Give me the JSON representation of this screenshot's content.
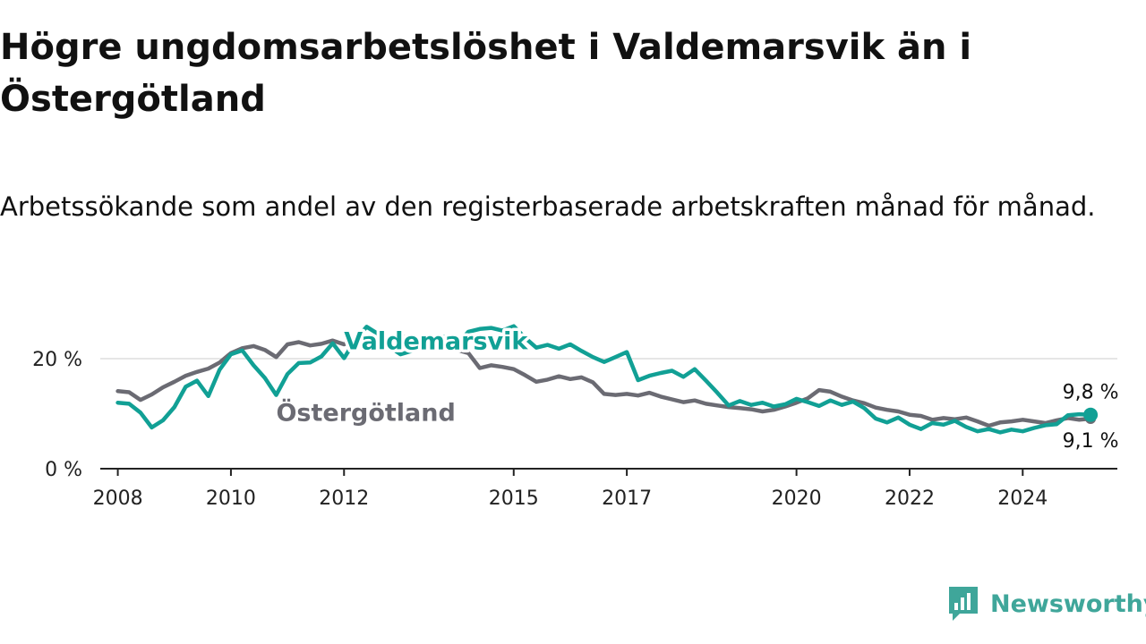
{
  "header": {
    "title": "Högre ungdomsarbetslöshet i Valdemarsvik än i Östergötland",
    "subtitle": "Arbetssökande som andel av den registerbaserade arbetskraften månad för månad."
  },
  "brand": {
    "name": "Newsworthy",
    "icon": "newsworthy-logo-icon",
    "color": "#3fa69a"
  },
  "chart_data": {
    "type": "line",
    "title": "Högre ungdomsarbetslöshet i Valdemarsvik än i Östergötland",
    "subtitle": "Arbetssökande som andel av den registerbaserade arbetskraften månad för månad.",
    "xlabel": "",
    "ylabel": "",
    "x_ticks": [
      "2008",
      "2010",
      "2012",
      "2015",
      "2017",
      "2020",
      "2022",
      "2024"
    ],
    "y_ticks": [
      {
        "value": 0,
        "label": "0 %"
      },
      {
        "value": 20,
        "label": "20 %"
      }
    ],
    "xlim": [
      2007.5,
      2025.8
    ],
    "ylim": [
      0,
      30
    ],
    "grid": true,
    "legend": "direct-labels",
    "series": [
      {
        "name": "Östergötland",
        "color": "#6b6b73",
        "label_at": [
          2010.8,
          8.7
        ],
        "end_label": "9,1 %",
        "points": [
          [
            2008.0,
            14.1
          ],
          [
            2008.2,
            13.9
          ],
          [
            2008.4,
            12.5
          ],
          [
            2008.6,
            13.5
          ],
          [
            2008.8,
            14.8
          ],
          [
            2009.0,
            15.8
          ],
          [
            2009.2,
            16.9
          ],
          [
            2009.4,
            17.6
          ],
          [
            2009.6,
            18.2
          ],
          [
            2009.8,
            19.3
          ],
          [
            2010.0,
            21.0
          ],
          [
            2010.2,
            21.9
          ],
          [
            2010.4,
            22.3
          ],
          [
            2010.6,
            21.6
          ],
          [
            2010.8,
            20.3
          ],
          [
            2011.0,
            22.6
          ],
          [
            2011.2,
            23.0
          ],
          [
            2011.4,
            22.4
          ],
          [
            2011.6,
            22.7
          ],
          [
            2011.8,
            23.3
          ],
          [
            2012.0,
            22.6
          ],
          [
            2012.2,
            23.6
          ],
          [
            2012.4,
            24.2
          ],
          [
            2012.6,
            23.5
          ],
          [
            2012.8,
            23.9
          ],
          [
            2013.0,
            24.2
          ],
          [
            2013.2,
            23.4
          ],
          [
            2013.4,
            23.0
          ],
          [
            2013.6,
            22.0
          ],
          [
            2013.8,
            22.1
          ],
          [
            2014.0,
            21.6
          ],
          [
            2014.2,
            21.0
          ],
          [
            2014.4,
            18.3
          ],
          [
            2014.6,
            18.8
          ],
          [
            2014.8,
            18.5
          ],
          [
            2015.0,
            18.1
          ],
          [
            2015.2,
            17.0
          ],
          [
            2015.4,
            15.8
          ],
          [
            2015.6,
            16.2
          ],
          [
            2015.8,
            16.8
          ],
          [
            2016.0,
            16.3
          ],
          [
            2016.2,
            16.6
          ],
          [
            2016.4,
            15.7
          ],
          [
            2016.6,
            13.6
          ],
          [
            2016.8,
            13.4
          ],
          [
            2017.0,
            13.6
          ],
          [
            2017.2,
            13.3
          ],
          [
            2017.4,
            13.8
          ],
          [
            2017.6,
            13.1
          ],
          [
            2017.8,
            12.6
          ],
          [
            2018.0,
            12.1
          ],
          [
            2018.2,
            12.4
          ],
          [
            2018.4,
            11.8
          ],
          [
            2018.6,
            11.5
          ],
          [
            2018.8,
            11.2
          ],
          [
            2019.0,
            11.0
          ],
          [
            2019.2,
            10.8
          ],
          [
            2019.4,
            10.4
          ],
          [
            2019.6,
            10.7
          ],
          [
            2019.8,
            11.3
          ],
          [
            2020.0,
            12.0
          ],
          [
            2020.2,
            12.8
          ],
          [
            2020.4,
            14.3
          ],
          [
            2020.6,
            14.0
          ],
          [
            2020.8,
            13.1
          ],
          [
            2021.0,
            12.4
          ],
          [
            2021.2,
            11.9
          ],
          [
            2021.4,
            11.1
          ],
          [
            2021.6,
            10.7
          ],
          [
            2021.8,
            10.4
          ],
          [
            2022.0,
            9.8
          ],
          [
            2022.2,
            9.6
          ],
          [
            2022.4,
            8.9
          ],
          [
            2022.6,
            9.2
          ],
          [
            2022.8,
            9.0
          ],
          [
            2023.0,
            9.3
          ],
          [
            2023.2,
            8.6
          ],
          [
            2023.4,
            7.8
          ],
          [
            2023.6,
            8.4
          ],
          [
            2023.8,
            8.6
          ],
          [
            2024.0,
            8.9
          ],
          [
            2024.2,
            8.6
          ],
          [
            2024.4,
            8.3
          ],
          [
            2024.6,
            8.8
          ],
          [
            2024.8,
            9.2
          ],
          [
            2025.0,
            8.9
          ],
          [
            2025.2,
            9.1
          ]
        ]
      },
      {
        "name": "Valdemarsvik",
        "color": "#11a095",
        "label_at": [
          2012.0,
          21.7
        ],
        "end_label": "9,8 %",
        "points": [
          [
            2008.0,
            12.0
          ],
          [
            2008.2,
            11.8
          ],
          [
            2008.4,
            10.2
          ],
          [
            2008.6,
            7.5
          ],
          [
            2008.8,
            8.8
          ],
          [
            2009.0,
            11.2
          ],
          [
            2009.2,
            14.9
          ],
          [
            2009.4,
            16.0
          ],
          [
            2009.6,
            13.2
          ],
          [
            2009.8,
            18.0
          ],
          [
            2010.0,
            20.8
          ],
          [
            2010.2,
            21.5
          ],
          [
            2010.4,
            18.8
          ],
          [
            2010.6,
            16.5
          ],
          [
            2010.8,
            13.4
          ],
          [
            2011.0,
            17.2
          ],
          [
            2011.2,
            19.2
          ],
          [
            2011.4,
            19.3
          ],
          [
            2011.6,
            20.4
          ],
          [
            2011.8,
            22.8
          ],
          [
            2012.0,
            20.1
          ],
          [
            2012.2,
            23.4
          ],
          [
            2012.4,
            25.8
          ],
          [
            2012.6,
            24.5
          ],
          [
            2012.8,
            22.2
          ],
          [
            2013.0,
            20.8
          ],
          [
            2013.2,
            21.4
          ],
          [
            2013.4,
            22.8
          ],
          [
            2013.6,
            23.9
          ],
          [
            2013.8,
            24.0
          ],
          [
            2014.0,
            22.6
          ],
          [
            2014.2,
            24.9
          ],
          [
            2014.4,
            25.4
          ],
          [
            2014.6,
            25.6
          ],
          [
            2014.8,
            25.1
          ],
          [
            2015.0,
            25.9
          ],
          [
            2015.2,
            23.8
          ],
          [
            2015.4,
            22.0
          ],
          [
            2015.6,
            22.5
          ],
          [
            2015.8,
            21.8
          ],
          [
            2016.0,
            22.6
          ],
          [
            2016.2,
            21.4
          ],
          [
            2016.4,
            20.3
          ],
          [
            2016.6,
            19.4
          ],
          [
            2016.8,
            20.3
          ],
          [
            2017.0,
            21.2
          ],
          [
            2017.2,
            16.1
          ],
          [
            2017.4,
            16.9
          ],
          [
            2017.6,
            17.4
          ],
          [
            2017.8,
            17.8
          ],
          [
            2018.0,
            16.7
          ],
          [
            2018.2,
            18.1
          ],
          [
            2018.4,
            16.0
          ],
          [
            2018.6,
            13.8
          ],
          [
            2018.8,
            11.5
          ],
          [
            2019.0,
            12.3
          ],
          [
            2019.2,
            11.6
          ],
          [
            2019.4,
            12.0
          ],
          [
            2019.6,
            11.3
          ],
          [
            2019.8,
            11.7
          ],
          [
            2020.0,
            12.7
          ],
          [
            2020.2,
            12.1
          ],
          [
            2020.4,
            11.4
          ],
          [
            2020.6,
            12.4
          ],
          [
            2020.8,
            11.6
          ],
          [
            2021.0,
            12.2
          ],
          [
            2021.2,
            11.0
          ],
          [
            2021.4,
            9.1
          ],
          [
            2021.6,
            8.4
          ],
          [
            2021.8,
            9.3
          ],
          [
            2022.0,
            8.0
          ],
          [
            2022.2,
            7.2
          ],
          [
            2022.4,
            8.3
          ],
          [
            2022.6,
            8.0
          ],
          [
            2022.8,
            8.7
          ],
          [
            2023.0,
            7.6
          ],
          [
            2023.2,
            6.8
          ],
          [
            2023.4,
            7.2
          ],
          [
            2023.6,
            6.6
          ],
          [
            2023.8,
            7.1
          ],
          [
            2024.0,
            6.8
          ],
          [
            2024.2,
            7.4
          ],
          [
            2024.4,
            7.9
          ],
          [
            2024.6,
            8.1
          ],
          [
            2024.8,
            9.7
          ],
          [
            2025.0,
            9.9
          ],
          [
            2025.2,
            9.8
          ]
        ]
      }
    ]
  }
}
